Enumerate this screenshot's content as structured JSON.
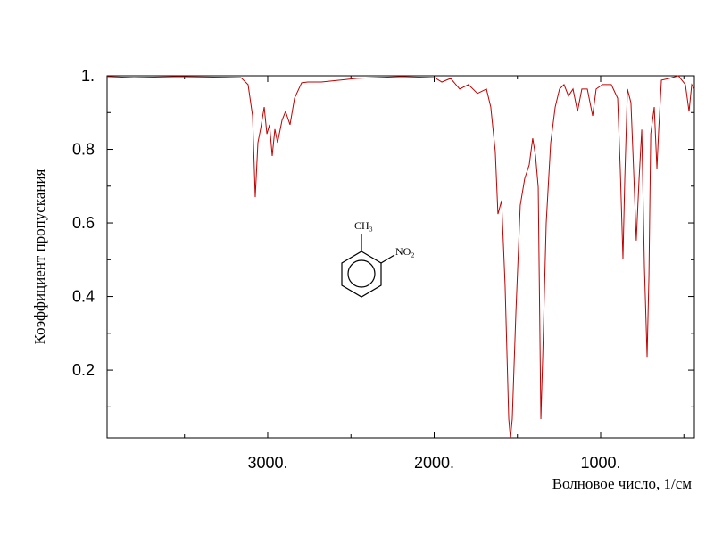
{
  "chart_data": {
    "type": "line",
    "x_label": "Волновое число, 1/см",
    "y_label": "Коэффициент пропускания",
    "annotations": [
      "CH₃",
      "NO₂"
    ],
    "xlim": [
      3965,
      437
    ],
    "ylim": [
      0.016,
      1.0
    ],
    "xticks": [
      {
        "value": 3000,
        "label": "3000."
      },
      {
        "value": 2000,
        "label": "2000."
      },
      {
        "value": 1000,
        "label": "1000."
      }
    ],
    "xticks_minor": [
      3500,
      2500,
      1500,
      500
    ],
    "yticks": [
      {
        "value": 1,
        "label": "1."
      },
      0.8,
      0.6,
      0.4,
      0.2
    ],
    "yticks_minor": [
      0.9,
      0.7,
      0.5,
      0.3,
      0.1
    ],
    "series": [
      {
        "color": "#c00000",
        "x": [
          3965,
          3804,
          3536,
          3161,
          3118,
          3091,
          3075,
          3059,
          3043,
          3021,
          3005,
          2989,
          2973,
          2957,
          2941,
          2914,
          2893,
          2866,
          2839,
          2796,
          2759,
          2678,
          2464,
          2196,
          1997,
          1954,
          1901,
          1847,
          1794,
          1740,
          1686,
          1660,
          1633,
          1617,
          1595,
          1574,
          1552,
          1542,
          1531,
          1509,
          1483,
          1456,
          1429,
          1408,
          1391,
          1375,
          1359,
          1348,
          1327,
          1300,
          1273,
          1247,
          1220,
          1193,
          1166,
          1139,
          1113,
          1080,
          1048,
          1027,
          989,
          936,
          898,
          882,
          866,
          855,
          839,
          818,
          802,
          786,
          769,
          753,
          737,
          721,
          710,
          699,
          678,
          662,
          651,
          635,
          587,
          533,
          491,
          469,
          453,
          437
        ],
        "values": [
          0.998,
          0.995,
          0.998,
          0.995,
          0.976,
          0.891,
          0.67,
          0.818,
          0.855,
          0.915,
          0.842,
          0.867,
          0.782,
          0.855,
          0.818,
          0.879,
          0.903,
          0.867,
          0.939,
          0.981,
          0.983,
          0.983,
          0.993,
          0.998,
          0.995,
          0.983,
          0.993,
          0.964,
          0.976,
          0.952,
          0.964,
          0.915,
          0.794,
          0.624,
          0.661,
          0.43,
          0.067,
          0.016,
          0.067,
          0.358,
          0.648,
          0.721,
          0.758,
          0.83,
          0.782,
          0.697,
          0.067,
          0.236,
          0.6,
          0.818,
          0.915,
          0.964,
          0.976,
          0.945,
          0.964,
          0.903,
          0.964,
          0.964,
          0.891,
          0.964,
          0.976,
          0.976,
          0.939,
          0.745,
          0.503,
          0.721,
          0.964,
          0.927,
          0.745,
          0.552,
          0.721,
          0.854,
          0.479,
          0.236,
          0.455,
          0.842,
          0.915,
          0.748,
          0.855,
          0.988,
          0.993,
          1.0,
          0.976,
          0.903,
          0.976,
          0.964
        ]
      }
    ]
  }
}
